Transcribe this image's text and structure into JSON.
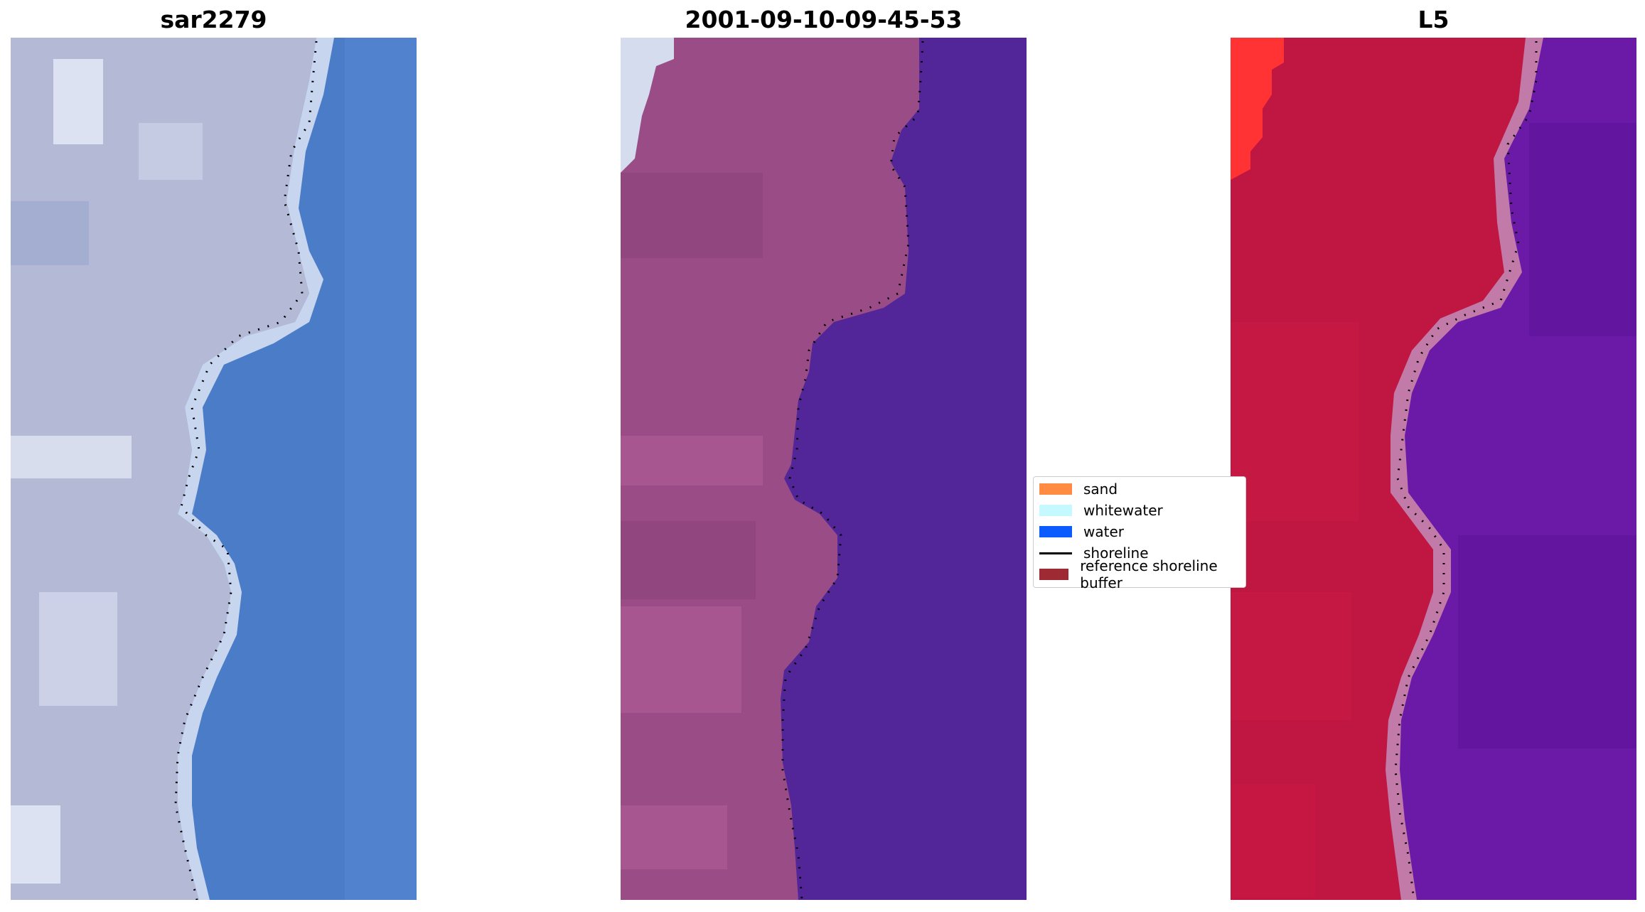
{
  "panels": [
    {
      "title": "sar2279",
      "colors": {
        "land": "#b4bad6",
        "land_light": "#d6dbee",
        "land_dark": "#98a6cc",
        "water": "#4a7cc8",
        "water_light": "#5b8fd8",
        "surf": "#e6ecf7"
      }
    },
    {
      "title": "2001-09-10-09-45-53",
      "colors": {
        "land": "#9a4c86",
        "land_light": "#b25e98",
        "land_dark": "#8a3f78",
        "water": "#522599",
        "edge": "#6b3aa8"
      }
    },
    {
      "title": "L5",
      "colors": {
        "land": "#bf1741",
        "land_light": "#d11a44",
        "land_dark": "#a51238",
        "water": "#6a1aa6",
        "water_dark": "#5a0f95",
        "edge": "#c27aa8",
        "red": "#ff3333"
      }
    }
  ],
  "legend": {
    "items": [
      {
        "label": "sand",
        "color": "#ff8c42",
        "kind": "patch"
      },
      {
        "label": "whitewater",
        "color": "#c6f8ff",
        "kind": "patch"
      },
      {
        "label": "water",
        "color": "#0b5cff",
        "kind": "patch"
      },
      {
        "label": "shoreline",
        "color": "#000000",
        "kind": "line"
      },
      {
        "label": "reference shoreline buffer",
        "color": "#9e2a33",
        "kind": "patch"
      }
    ]
  }
}
